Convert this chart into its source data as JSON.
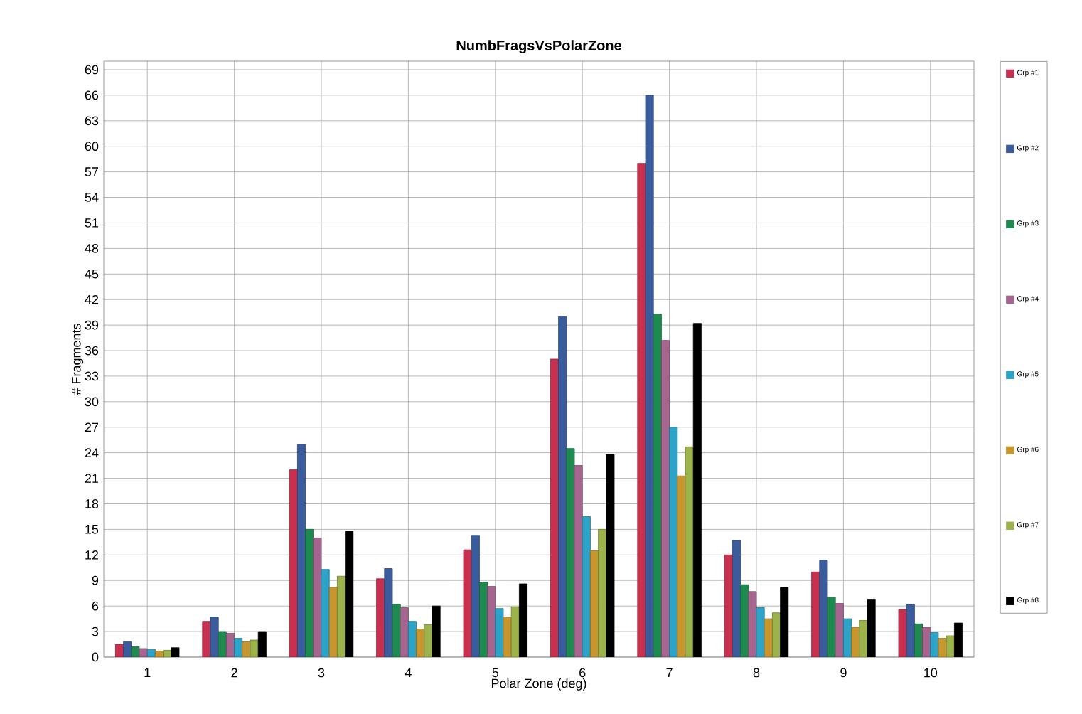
{
  "chart_data": {
    "type": "bar",
    "title": "NumbFragsVsPolarZone",
    "xlabel": "Polar Zone (deg)",
    "ylabel": "# Fragments",
    "categories": [
      "1",
      "2",
      "3",
      "4",
      "5",
      "6",
      "7",
      "8",
      "9",
      "10"
    ],
    "series": [
      {
        "name": "Grp #1",
        "color": "#c8304f",
        "values": [
          1.5,
          4.2,
          22,
          9.2,
          12.6,
          35,
          58,
          12,
          10,
          5.6
        ]
      },
      {
        "name": "Grp #2",
        "color": "#3a5c9c",
        "values": [
          1.8,
          4.7,
          25,
          10.4,
          14.3,
          40,
          66,
          13.7,
          11.4,
          6.2
        ]
      },
      {
        "name": "Grp #3",
        "color": "#1f8a4f",
        "values": [
          1.2,
          3.0,
          15,
          6.2,
          8.8,
          24.5,
          40.3,
          8.5,
          7,
          3.9
        ]
      },
      {
        "name": "Grp #4",
        "color": "#a6658f",
        "values": [
          1.0,
          2.8,
          14,
          5.8,
          8.3,
          22.5,
          37.2,
          7.7,
          6.3,
          3.5
        ]
      },
      {
        "name": "Grp #5",
        "color": "#2ea3c8",
        "values": [
          0.9,
          2.2,
          10.3,
          4.2,
          5.7,
          16.5,
          27,
          5.8,
          4.5,
          2.9
        ]
      },
      {
        "name": "Grp #6",
        "color": "#c8962e",
        "values": [
          0.7,
          1.8,
          8.2,
          3.3,
          4.7,
          12.5,
          21.3,
          4.5,
          3.5,
          2.2
        ]
      },
      {
        "name": "Grp #7",
        "color": "#9cb24a",
        "values": [
          0.8,
          2.0,
          9.5,
          3.8,
          5.9,
          15,
          24.7,
          5.2,
          4.3,
          2.5
        ]
      },
      {
        "name": "Grp #8",
        "color": "#000000",
        "values": [
          1.1,
          3.0,
          14.8,
          6.0,
          8.6,
          23.8,
          39.2,
          8.2,
          6.8,
          4.0
        ]
      }
    ],
    "ylim": [
      0,
      70
    ],
    "yticks": [
      0,
      3,
      6,
      9,
      12,
      15,
      18,
      21,
      24,
      27,
      30,
      33,
      36,
      39,
      42,
      45,
      48,
      51,
      54,
      57,
      60,
      63,
      66,
      69
    ],
    "grid": true,
    "legend": "right"
  }
}
